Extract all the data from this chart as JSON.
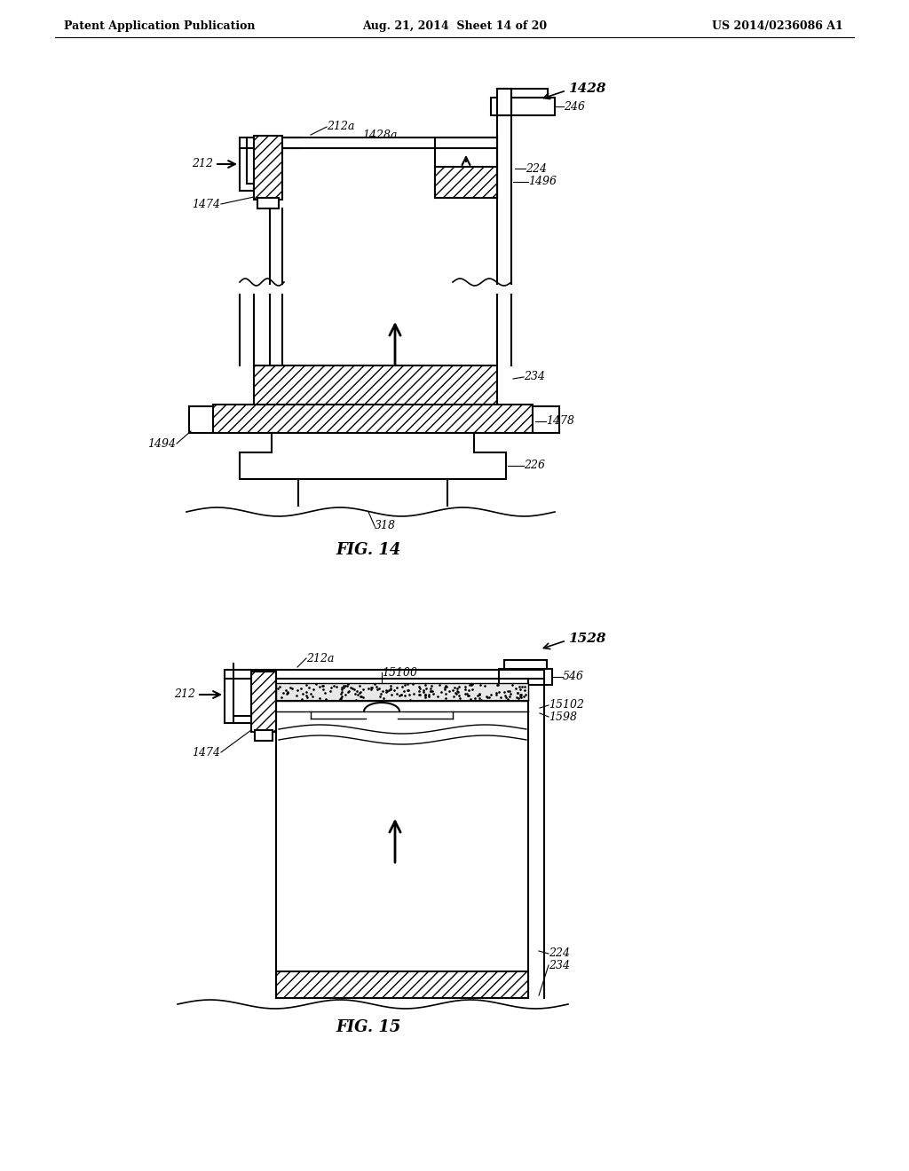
{
  "header_left": "Patent Application Publication",
  "header_mid": "Aug. 21, 2014  Sheet 14 of 20",
  "header_right": "US 2014/0236086 A1",
  "fig14_label": "FIG. 14",
  "fig15_label": "FIG. 15",
  "background": "#ffffff",
  "line_color": "#000000",
  "label_fontsize": 9,
  "header_fontsize": 9,
  "fig_label_fontsize": 13
}
